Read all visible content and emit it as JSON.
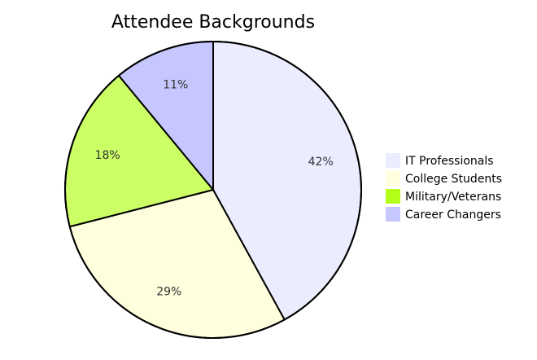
{
  "chart_data": {
    "type": "pie",
    "title": "Attendee Backgrounds",
    "categories": [
      "IT Professionals",
      "College Students",
      "Military/Veterans",
      "Career Changers"
    ],
    "values": [
      42,
      29,
      18,
      11
    ],
    "labels": [
      "42%",
      "29%",
      "18%",
      "11%"
    ],
    "colors": [
      "#ECECFF",
      "#FFFFDE",
      "#CCFF66",
      "#C7C7FF"
    ],
    "legend_colors": [
      "#ECECFF",
      "#FFFFDE",
      "#B3FF1A",
      "#C7C7FF"
    ],
    "legend_position": "right",
    "start": "top",
    "direction": "clockwise"
  }
}
